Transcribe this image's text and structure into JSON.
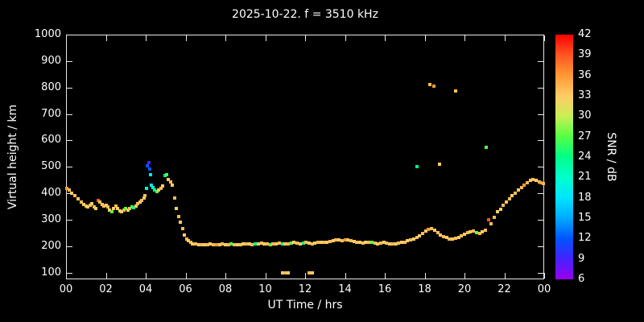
{
  "chart_data": {
    "type": "scatter",
    "title": "2025-10-22. f = 3510 kHz",
    "xlabel": "UT Time / hrs",
    "ylabel": "Virtual height / km",
    "x_tick_labels": [
      "00",
      "02",
      "04",
      "06",
      "08",
      "10",
      "12",
      "14",
      "16",
      "18",
      "20",
      "22",
      "00"
    ],
    "x_tick_values": [
      0,
      2,
      4,
      6,
      8,
      10,
      12,
      14,
      16,
      18,
      20,
      22,
      24
    ],
    "y_ticks": [
      100,
      200,
      300,
      400,
      500,
      600,
      700,
      800,
      900,
      1000
    ],
    "xlim": [
      0,
      24
    ],
    "ylim": [
      75,
      1000
    ],
    "grid": false,
    "background_color": "#000000",
    "axis_color": "#e8e8e8",
    "text_color": "#ffffff",
    "legend_position": "right-colorbar",
    "colorbar": {
      "label": "SNR / dB",
      "min": 6,
      "max": 42,
      "ticks": [
        6,
        9,
        12,
        15,
        18,
        21,
        24,
        27,
        30,
        33,
        36,
        39,
        42
      ],
      "stops": [
        [
          6,
          "#9900ee"
        ],
        [
          9,
          "#4422ff"
        ],
        [
          12,
          "#0055ff"
        ],
        [
          15,
          "#00aaff"
        ],
        [
          18,
          "#00e5ff"
        ],
        [
          21,
          "#00ffcc"
        ],
        [
          24,
          "#00ff88"
        ],
        [
          27,
          "#55ff44"
        ],
        [
          30,
          "#cbee55"
        ],
        [
          33,
          "#ffcc66"
        ],
        [
          36,
          "#ff9933"
        ],
        [
          39,
          "#ff5522"
        ],
        [
          42,
          "#ff0000"
        ]
      ]
    },
    "points": [
      [
        0.05,
        420,
        36
      ],
      [
        0.15,
        412,
        34
      ],
      [
        0.3,
        402,
        33
      ],
      [
        0.45,
        390,
        34
      ],
      [
        0.6,
        378,
        33
      ],
      [
        0.75,
        368,
        34
      ],
      [
        0.9,
        358,
        33
      ],
      [
        1.0,
        352,
        34
      ],
      [
        1.1,
        348,
        33
      ],
      [
        1.2,
        356,
        34
      ],
      [
        1.3,
        362,
        33
      ],
      [
        1.4,
        350,
        34
      ],
      [
        1.5,
        344,
        33
      ],
      [
        1.6,
        372,
        39
      ],
      [
        1.7,
        366,
        34
      ],
      [
        1.8,
        358,
        33
      ],
      [
        1.9,
        352,
        34
      ],
      [
        2.0,
        356,
        33
      ],
      [
        2.1,
        348,
        34
      ],
      [
        2.2,
        338,
        33
      ],
      [
        2.3,
        330,
        27
      ],
      [
        2.4,
        342,
        33
      ],
      [
        2.5,
        352,
        34
      ],
      [
        2.6,
        344,
        33
      ],
      [
        2.7,
        334,
        30
      ],
      [
        2.8,
        330,
        33
      ],
      [
        2.9,
        338,
        34
      ],
      [
        3.0,
        342,
        27
      ],
      [
        3.1,
        336,
        33
      ],
      [
        3.2,
        344,
        34
      ],
      [
        3.3,
        350,
        27
      ],
      [
        3.4,
        346,
        24
      ],
      [
        3.5,
        352,
        33
      ],
      [
        3.6,
        360,
        34
      ],
      [
        3.7,
        368,
        33
      ],
      [
        3.8,
        374,
        34
      ],
      [
        3.9,
        382,
        33
      ],
      [
        3.95,
        390,
        34
      ],
      [
        4.05,
        420,
        21
      ],
      [
        4.1,
        505,
        12
      ],
      [
        4.15,
        515,
        9
      ],
      [
        4.2,
        492,
        12
      ],
      [
        4.25,
        470,
        18
      ],
      [
        4.3,
        432,
        18
      ],
      [
        4.35,
        422,
        21
      ],
      [
        4.45,
        412,
        24
      ],
      [
        4.55,
        406,
        27
      ],
      [
        4.65,
        412,
        33
      ],
      [
        4.75,
        420,
        34
      ],
      [
        4.85,
        428,
        33
      ],
      [
        4.95,
        468,
        24
      ],
      [
        5.05,
        472,
        27
      ],
      [
        5.15,
        452,
        33
      ],
      [
        5.25,
        442,
        34
      ],
      [
        5.35,
        430,
        33
      ],
      [
        5.45,
        382,
        34
      ],
      [
        5.55,
        342,
        33
      ],
      [
        5.65,
        312,
        34
      ],
      [
        5.75,
        292,
        33
      ],
      [
        5.85,
        266,
        34
      ],
      [
        5.95,
        242,
        33
      ],
      [
        6.05,
        228,
        34
      ],
      [
        6.15,
        220,
        33
      ],
      [
        6.25,
        214,
        34
      ],
      [
        6.35,
        210,
        33
      ],
      [
        6.5,
        208,
        34
      ],
      [
        6.65,
        206,
        33
      ],
      [
        6.8,
        205,
        34
      ],
      [
        6.95,
        207,
        33
      ],
      [
        7.1,
        206,
        34
      ],
      [
        7.25,
        208,
        33
      ],
      [
        7.4,
        205,
        34
      ],
      [
        7.55,
        207,
        36
      ],
      [
        7.7,
        206,
        33
      ],
      [
        7.85,
        208,
        34
      ],
      [
        8.0,
        207,
        33
      ],
      [
        8.15,
        205,
        34
      ],
      [
        8.3,
        208,
        27
      ],
      [
        8.45,
        206,
        34
      ],
      [
        8.6,
        207,
        33
      ],
      [
        8.75,
        205,
        34
      ],
      [
        8.9,
        208,
        33
      ],
      [
        9.05,
        210,
        34
      ],
      [
        9.2,
        208,
        33
      ],
      [
        9.35,
        206,
        34
      ],
      [
        9.5,
        208,
        24
      ],
      [
        9.65,
        210,
        33
      ],
      [
        9.8,
        212,
        34
      ],
      [
        9.95,
        210,
        33
      ],
      [
        10.1,
        208,
        34
      ],
      [
        10.25,
        206,
        27
      ],
      [
        10.4,
        208,
        34
      ],
      [
        10.55,
        210,
        33
      ],
      [
        10.7,
        212,
        34
      ],
      [
        10.85,
        210,
        24
      ],
      [
        11.0,
        208,
        33
      ],
      [
        11.15,
        210,
        34
      ],
      [
        11.3,
        212,
        27
      ],
      [
        11.45,
        214,
        33
      ],
      [
        11.6,
        212,
        34
      ],
      [
        11.75,
        210,
        33
      ],
      [
        11.9,
        212,
        24
      ],
      [
        12.05,
        214,
        34
      ],
      [
        12.2,
        212,
        33
      ],
      [
        12.35,
        210,
        34
      ],
      [
        12.5,
        212,
        33
      ],
      [
        12.65,
        214,
        34
      ],
      [
        12.8,
        216,
        33
      ],
      [
        12.95,
        214,
        34
      ],
      [
        13.1,
        216,
        33
      ],
      [
        13.25,
        218,
        34
      ],
      [
        13.4,
        222,
        33
      ],
      [
        13.55,
        225,
        34
      ],
      [
        13.7,
        224,
        33
      ],
      [
        13.85,
        222,
        34
      ],
      [
        14.0,
        225,
        36
      ],
      [
        14.15,
        224,
        33
      ],
      [
        14.3,
        222,
        34
      ],
      [
        14.45,
        218,
        33
      ],
      [
        14.6,
        215,
        34
      ],
      [
        14.75,
        214,
        33
      ],
      [
        14.9,
        212,
        34
      ],
      [
        15.05,
        214,
        33
      ],
      [
        15.2,
        216,
        34
      ],
      [
        15.35,
        214,
        27
      ],
      [
        15.5,
        212,
        34
      ],
      [
        15.65,
        210,
        33
      ],
      [
        15.8,
        212,
        34
      ],
      [
        15.95,
        214,
        33
      ],
      [
        16.1,
        212,
        34
      ],
      [
        16.25,
        210,
        33
      ],
      [
        16.4,
        208,
        34
      ],
      [
        16.55,
        210,
        33
      ],
      [
        16.7,
        212,
        34
      ],
      [
        16.85,
        214,
        33
      ],
      [
        17.0,
        216,
        34
      ],
      [
        17.15,
        220,
        33
      ],
      [
        17.3,
        224,
        34
      ],
      [
        17.45,
        228,
        33
      ],
      [
        17.6,
        232,
        34
      ],
      [
        17.75,
        238,
        33
      ],
      [
        17.9,
        248,
        34
      ],
      [
        18.05,
        258,
        33
      ],
      [
        18.2,
        265,
        36
      ],
      [
        18.35,
        268,
        34
      ],
      [
        18.5,
        262,
        33
      ],
      [
        18.65,
        252,
        34
      ],
      [
        18.8,
        242,
        33
      ],
      [
        18.95,
        236,
        34
      ],
      [
        19.1,
        232,
        33
      ],
      [
        19.25,
        228,
        34
      ],
      [
        19.4,
        226,
        33
      ],
      [
        19.55,
        230,
        34
      ],
      [
        19.7,
        234,
        33
      ],
      [
        19.85,
        240,
        34
      ],
      [
        20.0,
        246,
        33
      ],
      [
        20.15,
        250,
        34
      ],
      [
        20.3,
        254,
        33
      ],
      [
        20.45,
        258,
        34
      ],
      [
        20.6,
        252,
        27
      ],
      [
        20.75,
        248,
        34
      ],
      [
        20.9,
        255,
        33
      ],
      [
        21.05,
        262,
        34
      ],
      [
        21.2,
        300,
        39
      ],
      [
        21.35,
        285,
        34
      ],
      [
        21.5,
        310,
        34
      ],
      [
        21.65,
        330,
        33
      ],
      [
        21.8,
        340,
        33
      ],
      [
        21.95,
        355,
        34
      ],
      [
        22.1,
        368,
        33
      ],
      [
        22.25,
        380,
        34
      ],
      [
        22.4,
        392,
        33
      ],
      [
        22.55,
        402,
        34
      ],
      [
        22.7,
        412,
        33
      ],
      [
        22.85,
        422,
        34
      ],
      [
        23.0,
        432,
        36
      ],
      [
        23.15,
        440,
        34
      ],
      [
        23.3,
        448,
        33
      ],
      [
        23.45,
        452,
        34
      ],
      [
        23.6,
        448,
        33
      ],
      [
        23.75,
        444,
        34
      ],
      [
        23.85,
        440,
        36
      ],
      [
        23.95,
        438,
        34
      ],
      [
        10.85,
        100,
        33
      ],
      [
        11.0,
        100,
        34
      ],
      [
        11.15,
        100,
        33
      ],
      [
        12.2,
        100,
        34
      ],
      [
        12.35,
        100,
        33
      ],
      [
        17.6,
        502,
        24
      ],
      [
        18.25,
        812,
        34
      ],
      [
        18.45,
        806,
        36
      ],
      [
        18.75,
        510,
        33
      ],
      [
        19.55,
        788,
        34
      ],
      [
        21.1,
        575,
        27
      ]
    ]
  }
}
